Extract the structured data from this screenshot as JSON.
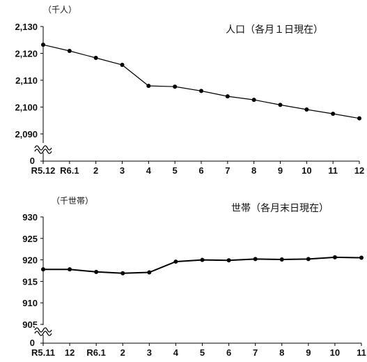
{
  "chart_data": [
    {
      "type": "line",
      "title": "人口（各月１日現在）",
      "unit_label": "（千人）",
      "zero_label": "0",
      "categories": [
        "R5.12",
        "R6.1",
        "2",
        "3",
        "4",
        "5",
        "6",
        "7",
        "8",
        "9",
        "10",
        "11",
        "12"
      ],
      "values": [
        2123.2,
        2120.9,
        2118.3,
        2115.7,
        2107.9,
        2107.6,
        2106.0,
        2104.0,
        2102.7,
        2100.8,
        2099.1,
        2097.5,
        2095.8
      ],
      "y_ticks": [
        "2,130",
        "2,120",
        "2,110",
        "2,100",
        "2,090"
      ],
      "ylim": [
        2090,
        2130
      ],
      "axis_break": true,
      "grid": false,
      "line_color": "#000000"
    },
    {
      "type": "line",
      "title": "世帯（各月末日現在）",
      "unit_label": "（千世帯）",
      "zero_label": "0",
      "categories": [
        "R5.11",
        "12",
        "R6.1",
        "2",
        "3",
        "4",
        "5",
        "6",
        "7",
        "8",
        "9",
        "10",
        "11"
      ],
      "values": [
        917.8,
        917.8,
        917.2,
        916.9,
        917.1,
        919.6,
        920.0,
        919.9,
        920.2,
        920.1,
        920.2,
        920.6,
        920.5
      ],
      "y_ticks": [
        "930",
        "925",
        "920",
        "915",
        "910",
        "905"
      ],
      "ylim": [
        905,
        930
      ],
      "axis_break": true,
      "grid": false,
      "line_color": "#000000"
    }
  ]
}
